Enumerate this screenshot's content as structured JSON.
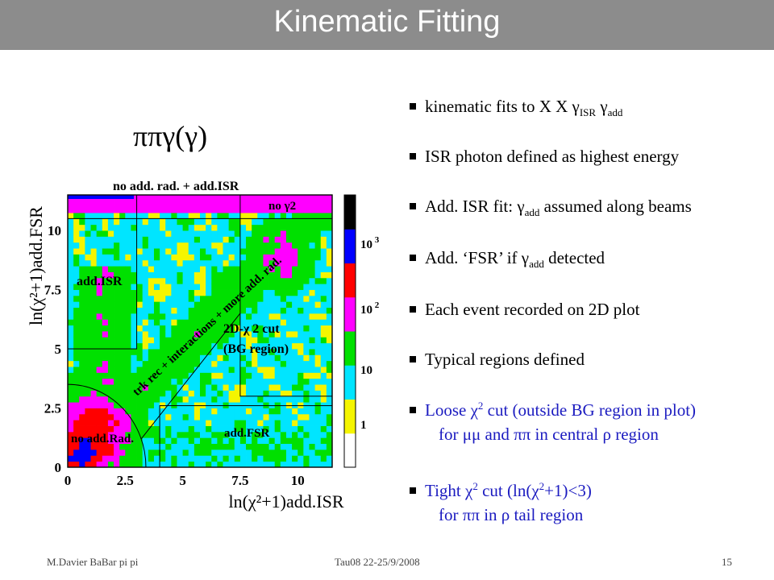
{
  "slide": {
    "title": "Kinematic Fitting",
    "heading": "ππγ(γ)",
    "footer": {
      "author": "M.Davier    BaBar pi pi",
      "event": "Tau08  22-25/9/2008",
      "page": "15"
    }
  },
  "bullets": [
    {
      "text": "kinematic fits to X X γ",
      "sub1": "ISR",
      "mid": " γ",
      "sub2": "add"
    },
    {
      "text": "ISR photon defined as highest energy"
    },
    {
      "text": "Add. ISR fit: γ",
      "sub1": "add",
      "mid": " assumed along beams"
    },
    {
      "text": "Add. ‘FSR’ if γ",
      "sub1": "add",
      "mid": " detected"
    },
    {
      "text": "Each event recorded on 2D plot"
    },
    {
      "text": "Typical regions defined"
    },
    {
      "text": "Loose χ",
      "sup1": "2",
      "mid": " cut (outside BG region in plot)",
      "cont": "for μμ and ππ in central ρ region",
      "color": "#1b1bc0"
    },
    {
      "text": "Tight χ",
      "sup1": "2",
      "mid": " cut  (ln(χ",
      "sup2": "2",
      "end": "+1)<3)",
      "cont": "for ππ in ρ tail region",
      "color": "#1b1bc0"
    }
  ],
  "chart_data": {
    "type": "heatmap",
    "title": "",
    "xlabel": "ln(χ²+1)add.ISR",
    "ylabel": "ln(χ²+1)add.FSR",
    "xlim": [
      0,
      11.5
    ],
    "ylim": [
      0,
      11.5
    ],
    "x_ticks": [
      "0",
      "2.5",
      "5",
      "7.5",
      "10"
    ],
    "y_ticks": [
      "0",
      "2.5",
      "5",
      "7.5",
      "10"
    ],
    "colorbar": {
      "scale": "log",
      "ticks": [
        "1",
        "10",
        "10 2",
        "10 3"
      ],
      "colors": [
        "#ffffff",
        "#f5f500",
        "#00e5ff",
        "#00e000",
        "#ff00ff",
        "#ff0000",
        "#0000ff",
        "#000000"
      ]
    },
    "region_labels": [
      "no add. rad. + add.ISR",
      "no γ2",
      "add.ISR",
      "2D-χ 2 cut",
      "(BG region)",
      "trk rec + interactions + more add. rad.",
      "no add.Rad.",
      "add.FSR"
    ]
  }
}
